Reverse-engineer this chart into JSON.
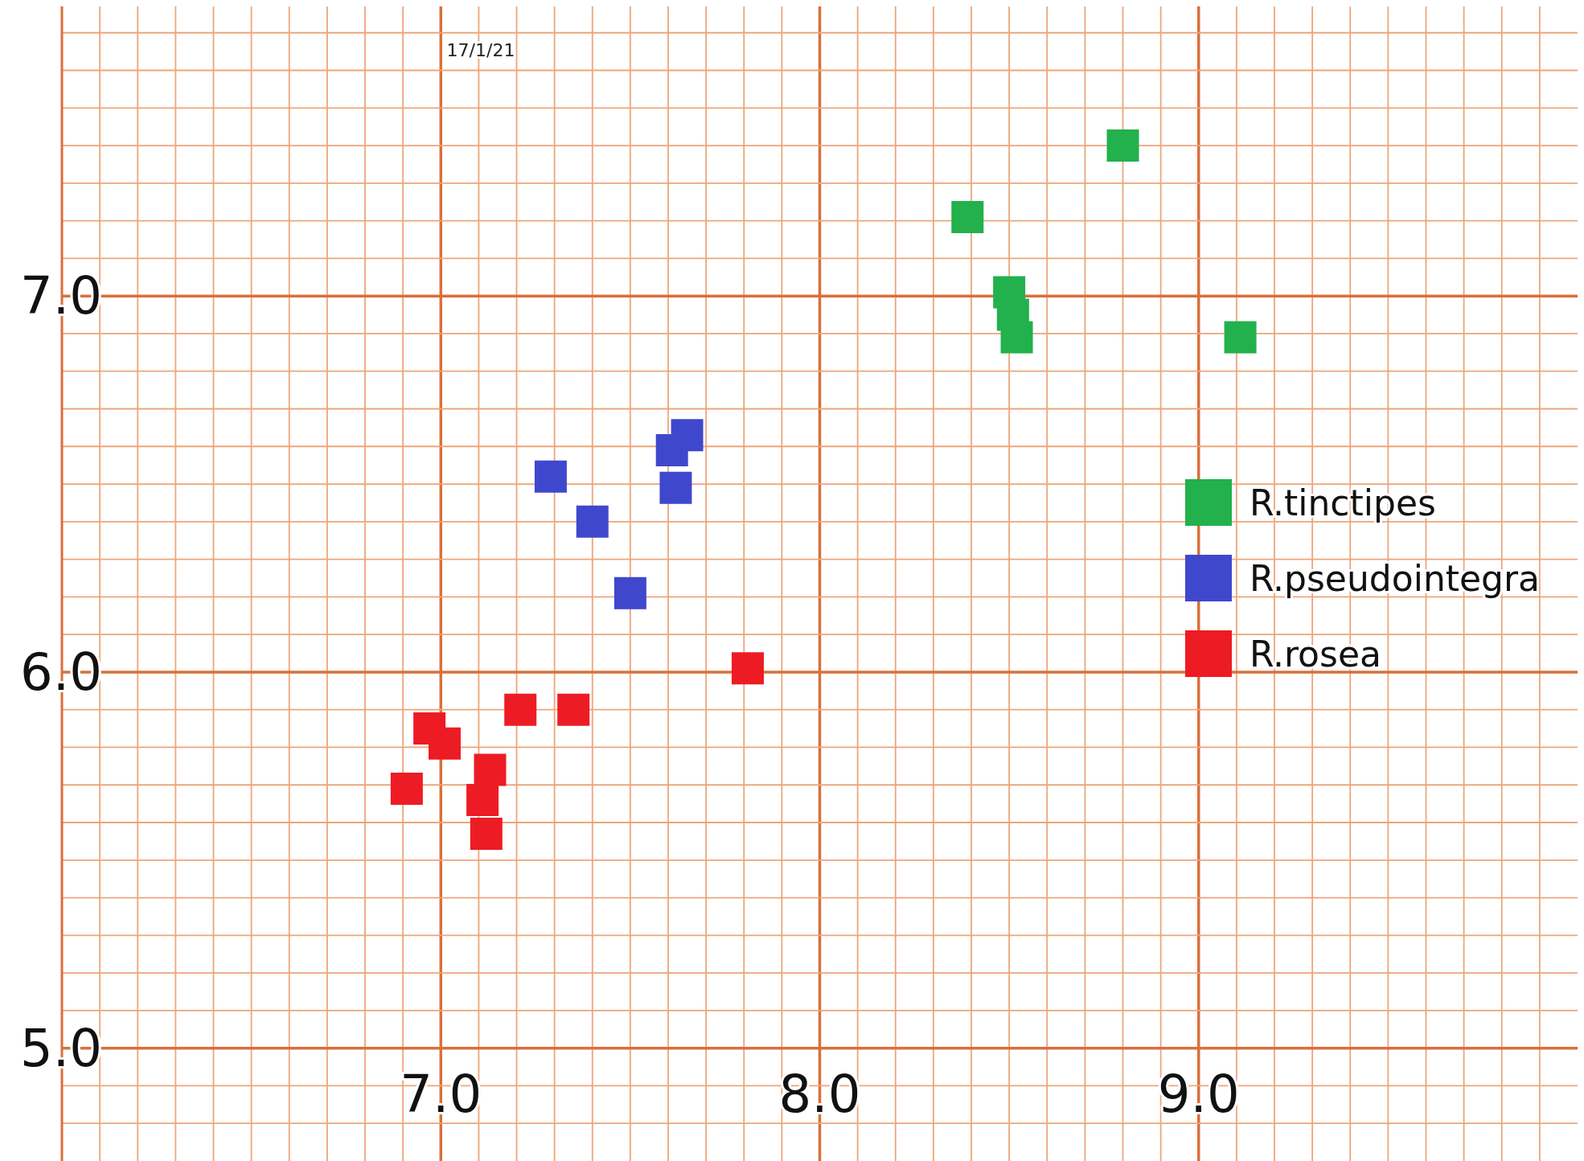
{
  "chart_data": {
    "type": "scatter",
    "marker": "square",
    "grid": true,
    "legend": "right",
    "annotations": [
      "17/1/21"
    ],
    "xlim": [
      6.0,
      10.0
    ],
    "ylim": [
      4.7,
      7.77
    ],
    "xticks": [
      {
        "value": 6.0,
        "label": null
      },
      {
        "value": 6.1,
        "label": null
      },
      {
        "value": 6.2,
        "label": null
      },
      {
        "value": 6.3,
        "label": null
      },
      {
        "value": 6.4,
        "label": null
      },
      {
        "value": 6.5,
        "label": null
      },
      {
        "value": 6.6,
        "label": null
      },
      {
        "value": 6.7,
        "label": null
      },
      {
        "value": 6.8,
        "label": null
      },
      {
        "value": 6.9,
        "label": null
      },
      {
        "value": 7.0,
        "label": "7.0"
      },
      {
        "value": 7.1,
        "label": null
      },
      {
        "value": 7.2,
        "label": null
      },
      {
        "value": 7.3,
        "label": null
      },
      {
        "value": 7.4,
        "label": null
      },
      {
        "value": 7.5,
        "label": null
      },
      {
        "value": 7.6,
        "label": null
      },
      {
        "value": 7.7,
        "label": null
      },
      {
        "value": 7.8,
        "label": null
      },
      {
        "value": 7.9,
        "label": null
      },
      {
        "value": 8.0,
        "label": "8.0"
      },
      {
        "value": 8.1,
        "label": null
      },
      {
        "value": 8.2,
        "label": null
      },
      {
        "value": 8.3,
        "label": null
      },
      {
        "value": 8.4,
        "label": null
      },
      {
        "value": 8.5,
        "label": null
      },
      {
        "value": 8.6,
        "label": null
      },
      {
        "value": 8.7,
        "label": null
      },
      {
        "value": 8.8,
        "label": null
      },
      {
        "value": 8.9,
        "label": null
      },
      {
        "value": 9.0,
        "label": "9.0"
      },
      {
        "value": 9.1,
        "label": null
      },
      {
        "value": 9.2,
        "label": null
      },
      {
        "value": 9.3,
        "label": null
      },
      {
        "value": 9.4,
        "label": null
      },
      {
        "value": 9.5,
        "label": null
      },
      {
        "value": 9.6,
        "label": null
      },
      {
        "value": 9.7,
        "label": null
      },
      {
        "value": 9.8,
        "label": null
      },
      {
        "value": 9.9,
        "label": null
      }
    ],
    "yticks": [
      {
        "value": 4.8,
        "label": null
      },
      {
        "value": 4.9,
        "label": null
      },
      {
        "value": 5.0,
        "label": "5.0"
      },
      {
        "value": 5.1,
        "label": null
      },
      {
        "value": 5.2,
        "label": null
      },
      {
        "value": 5.3,
        "label": null
      },
      {
        "value": 5.4,
        "label": null
      },
      {
        "value": 5.5,
        "label": null
      },
      {
        "value": 5.6,
        "label": null
      },
      {
        "value": 5.7,
        "label": null
      },
      {
        "value": 5.8,
        "label": null
      },
      {
        "value": 5.9,
        "label": null
      },
      {
        "value": 6.0,
        "label": "6.0"
      },
      {
        "value": 6.1,
        "label": null
      },
      {
        "value": 6.2,
        "label": null
      },
      {
        "value": 6.3,
        "label": null
      },
      {
        "value": 6.4,
        "label": null
      },
      {
        "value": 6.5,
        "label": null
      },
      {
        "value": 6.6,
        "label": null
      },
      {
        "value": 6.7,
        "label": null
      },
      {
        "value": 6.8,
        "label": null
      },
      {
        "value": 6.9,
        "label": null
      },
      {
        "value": 7.0,
        "label": "7.0"
      },
      {
        "value": 7.1,
        "label": null
      },
      {
        "value": 7.2,
        "label": null
      },
      {
        "value": 7.3,
        "label": null
      },
      {
        "value": 7.4,
        "label": null
      },
      {
        "value": 7.5,
        "label": null
      },
      {
        "value": 7.6,
        "label": null
      },
      {
        "value": 7.7,
        "label": null
      }
    ],
    "series": [
      {
        "name": "R.tinctipes",
        "color": "#22b14c",
        "x": [
          8.8,
          8.39,
          8.5,
          8.51,
          8.52,
          9.11
        ],
        "values": [
          7.4,
          7.21,
          7.01,
          6.95,
          6.89,
          6.89
        ]
      },
      {
        "name": "R.pseudointegra",
        "color": "#3f48cc",
        "x": [
          7.29,
          7.4,
          7.5,
          7.65,
          7.61,
          7.62
        ],
        "values": [
          6.52,
          6.4,
          6.21,
          6.63,
          6.59,
          6.49
        ]
      },
      {
        "name": "R.rosea",
        "color": "#ed1c24",
        "x": [
          7.81,
          7.21,
          7.35,
          6.97,
          7.01,
          6.91,
          7.13,
          7.11,
          7.12
        ],
        "values": [
          6.01,
          5.9,
          5.9,
          5.85,
          5.81,
          5.69,
          5.74,
          5.66,
          5.57
        ]
      }
    ]
  }
}
